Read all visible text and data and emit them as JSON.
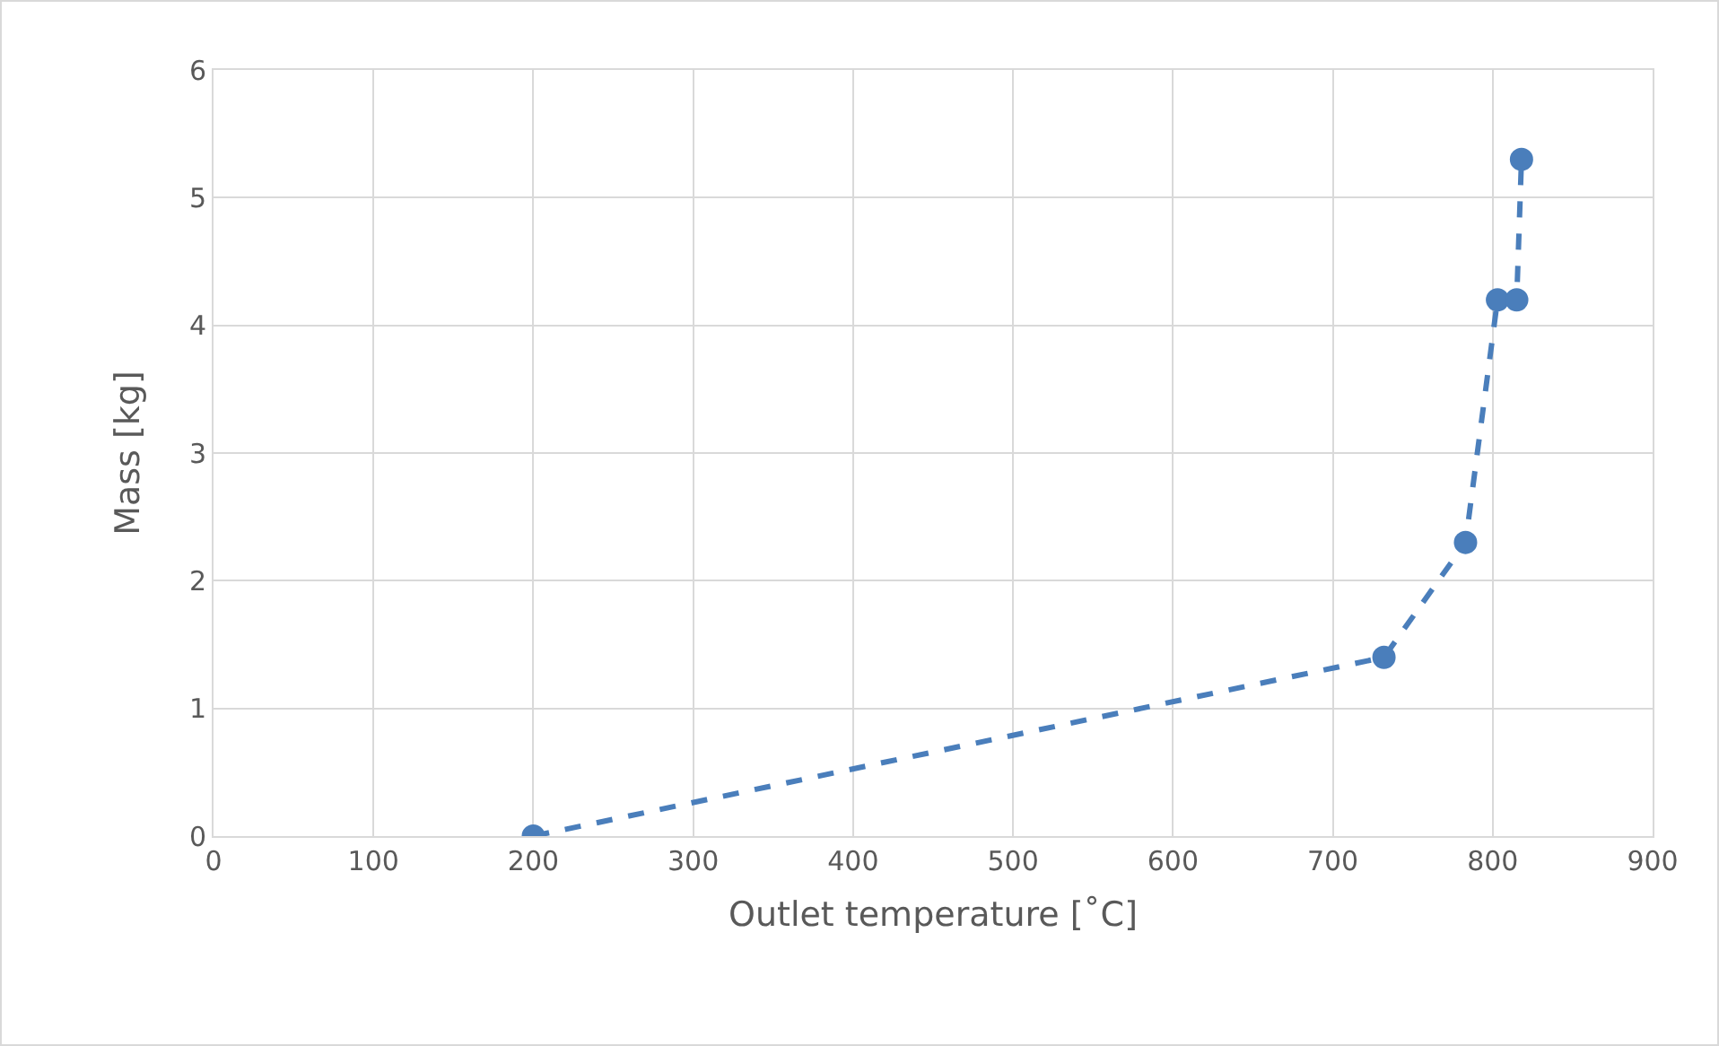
{
  "chart_data": {
    "type": "line",
    "xlabel": "Outlet temperature [˚C]",
    "ylabel": "Mass [kg]",
    "x": [
      200,
      732,
      783,
      803,
      815,
      818
    ],
    "series": [
      {
        "color": "#4a7ebb",
        "values": [
          0,
          1.4,
          2.3,
          4.2,
          4.2,
          5.3
        ]
      }
    ],
    "xlim": [
      0,
      900
    ],
    "xticks": [
      0,
      100,
      200,
      300,
      400,
      500,
      600,
      700,
      800,
      900
    ],
    "ylim": [
      0,
      6
    ],
    "yticks": [
      0,
      1,
      2,
      3,
      4,
      5,
      6
    ],
    "grid": true,
    "legend": false,
    "marker": "circle",
    "line_style": "dashed"
  }
}
